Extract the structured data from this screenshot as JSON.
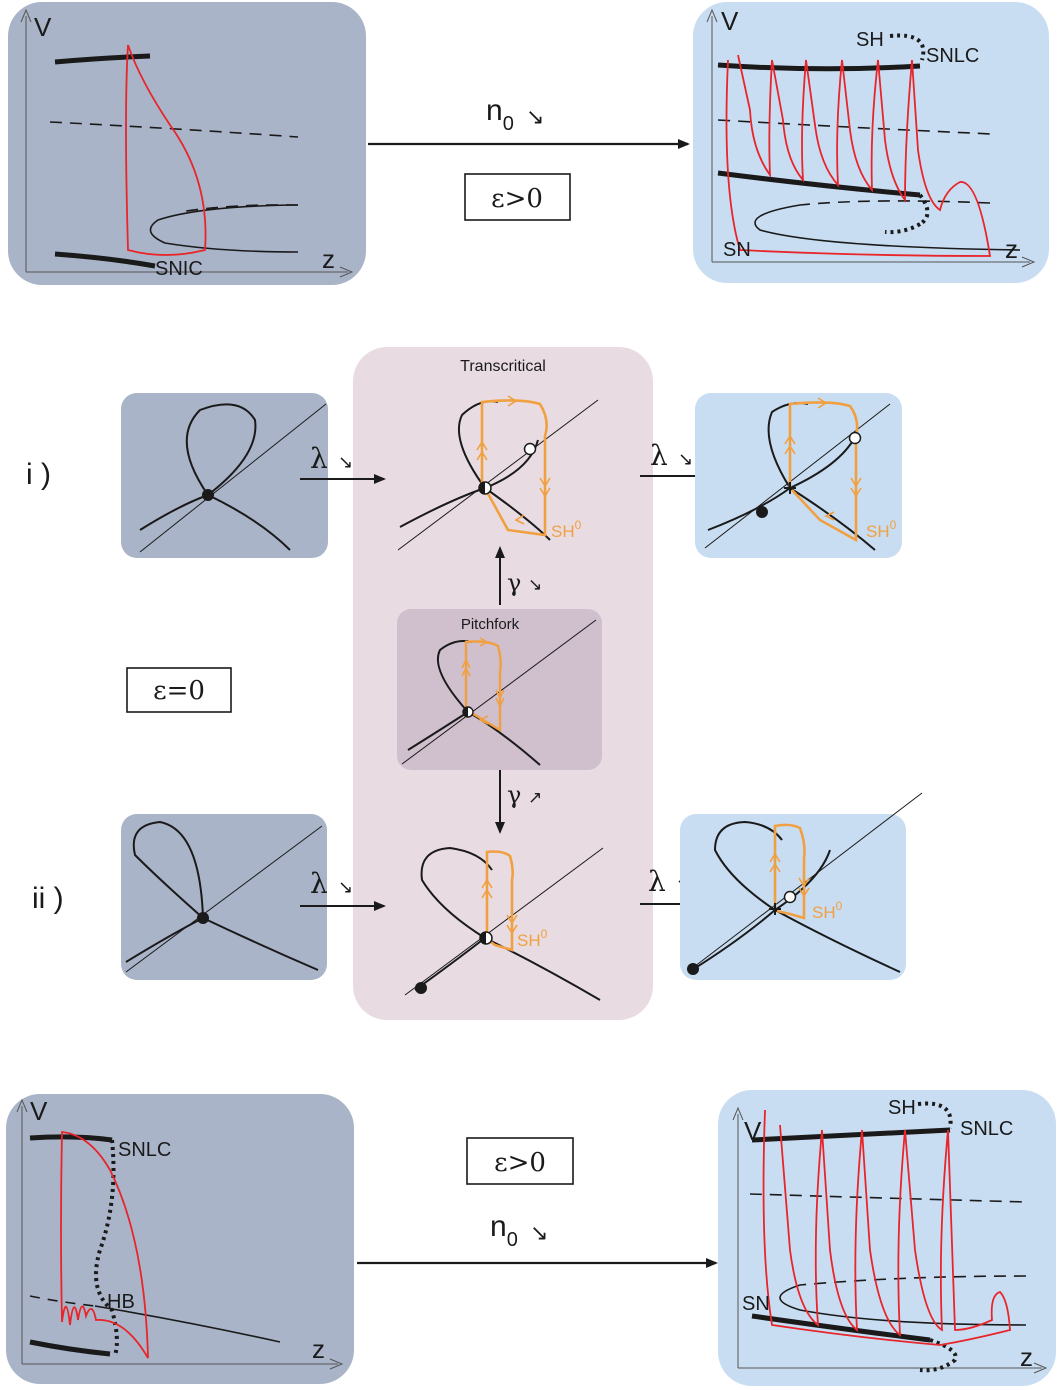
{
  "colors": {
    "dark_panel": "#aab4c8",
    "light_panel": "#c9ddf2",
    "mauve_panel": "#e8dce2",
    "pitchfork_panel": "#d0bfcd",
    "orange": "#f0a040",
    "red": "#e8252a",
    "black": "#1a1a1a"
  },
  "top": {
    "left": {
      "axis_v": "V",
      "axis_z": "z",
      "label_snic": "SNIC"
    },
    "arrow": {
      "param": "n",
      "sub": "0",
      "dir": "↘",
      "condition": "ε>0"
    },
    "right": {
      "axis_v": "V",
      "axis_z": "z",
      "label_sh": "SH",
      "label_snlc": "SNLC",
      "label_sn": "SN"
    }
  },
  "middle": {
    "condition": "ε=0",
    "row_i_label": "i )",
    "row_ii_label": "ii )",
    "transcritical_title": "Transcritical",
    "pitchfork_title": "Pitchfork",
    "lambda_arrow": {
      "sym": "λ",
      "dir": "↘"
    },
    "gamma_up": {
      "sym": "γ",
      "dir": "↘"
    },
    "gamma_down": {
      "sym": "γ",
      "dir": "↗"
    },
    "sh0": "SH",
    "sh0_sup": "0"
  },
  "bottom": {
    "left": {
      "axis_v": "V",
      "axis_z": "z",
      "label_snlc": "SNLC",
      "label_hb": "HB"
    },
    "arrow": {
      "param": "n",
      "sub": "0",
      "dir": "↘",
      "condition": "ε>0"
    },
    "right": {
      "axis_v": "V",
      "axis_z": "z",
      "label_sh": "SH",
      "label_snlc": "SNLC",
      "label_sn": "SN"
    }
  }
}
